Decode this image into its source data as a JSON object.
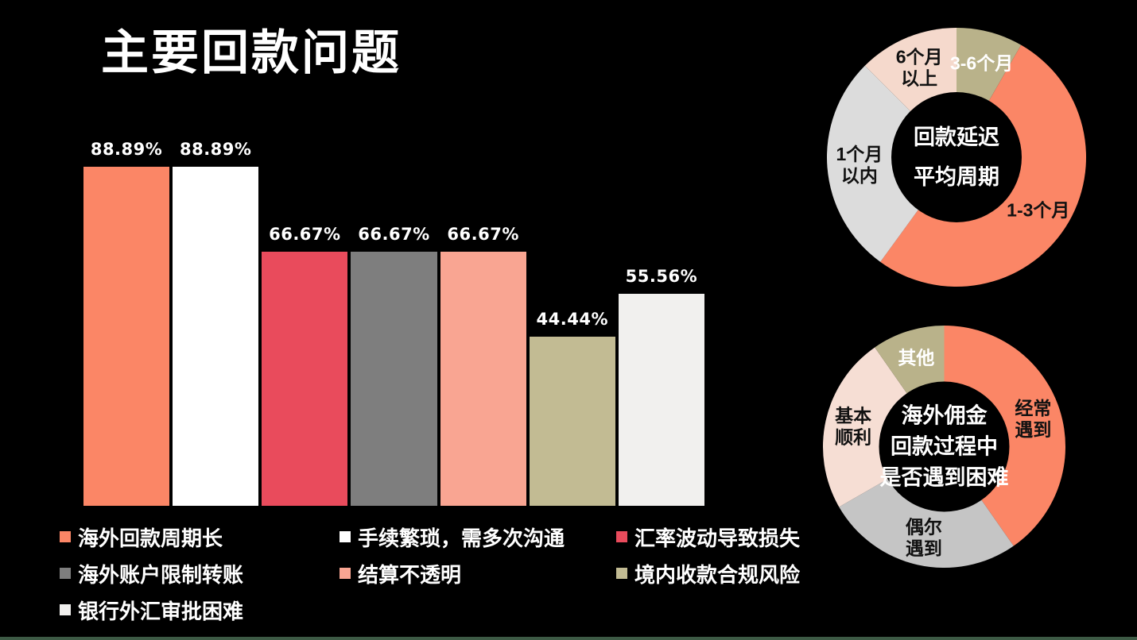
{
  "slide": {
    "title": "主要回款问题",
    "background_color": "#000000",
    "footer_bar_color": "#3D5A45"
  },
  "chart_data": [
    {
      "type": "bar",
      "title": "主要回款问题",
      "categories": [
        "海外回款周期长",
        "手续繁琐，需多次沟通",
        "汇率波动导致损失",
        "海外账户限制转账",
        "结算不透明",
        "境内收款合规风险",
        "银行外汇审批困难"
      ],
      "values": [
        88.89,
        88.89,
        66.67,
        66.67,
        66.67,
        44.44,
        55.56
      ],
      "value_labels": [
        "88.89%",
        "88.89%",
        "66.67%",
        "66.67%",
        "66.67%",
        "44.44%",
        "55.56%"
      ],
      "colors": [
        "#FB8666",
        "#FFFFFF",
        "#E94B5C",
        "#7E7E7E",
        "#F9A592",
        "#C2BB93",
        "#F1F0EE"
      ],
      "xlabel": "",
      "ylabel": "",
      "ylim": [
        0,
        100
      ],
      "grid": false,
      "legend_position": "bottom"
    },
    {
      "type": "donut",
      "title": "回款延迟平均周期",
      "center_label": [
        "回款延迟",
        "平均周期"
      ],
      "segments": [
        {
          "label": "3-6个月",
          "value": 8.3,
          "color": "#B9B28A",
          "label_color": "#FFFFFF"
        },
        {
          "label": "1-3个月",
          "value": 51.7,
          "color": "#FB8666",
          "label_color": "#111111"
        },
        {
          "label": "1个月\n以内",
          "value": 27.5,
          "color": "#DCDCDC",
          "label_color": "#111111"
        },
        {
          "label": "6个月\n以上",
          "value": 12.5,
          "color": "#F5D9CC",
          "label_color": "#111111"
        }
      ]
    },
    {
      "type": "donut",
      "title": "海外佣金回款过程中是否遇到困难",
      "center_label": [
        "海外佣金",
        "回款过程中",
        "是否遇到困难"
      ],
      "segments": [
        {
          "label": "经常\n遇到",
          "value": 40.3,
          "color": "#FB8666",
          "label_color": "#111111"
        },
        {
          "label": "偶尔\n遇到",
          "value": 26.4,
          "color": "#C5C5C5",
          "label_color": "#111111"
        },
        {
          "label": "基本\n顺利",
          "value": 23.6,
          "color": "#F6DED4",
          "label_color": "#111111"
        },
        {
          "label": "其他",
          "value": 9.7,
          "color": "#B9B28A",
          "label_color": "#FFFFFF"
        }
      ]
    }
  ],
  "legend": {
    "items": [
      {
        "label": "海外回款周期长",
        "color": "#FB8666"
      },
      {
        "label": "手续繁琐，需多次沟通",
        "color": "#FFFFFF"
      },
      {
        "label": "汇率波动导致损失",
        "color": "#E94B5C"
      },
      {
        "label": "海外账户限制转账",
        "color": "#7E7E7E"
      },
      {
        "label": "结算不透明",
        "color": "#F9A592"
      },
      {
        "label": "境内收款合规风险",
        "color": "#C2BB93"
      },
      {
        "label": "银行外汇审批困难",
        "color": "#F1F0EE"
      }
    ]
  }
}
